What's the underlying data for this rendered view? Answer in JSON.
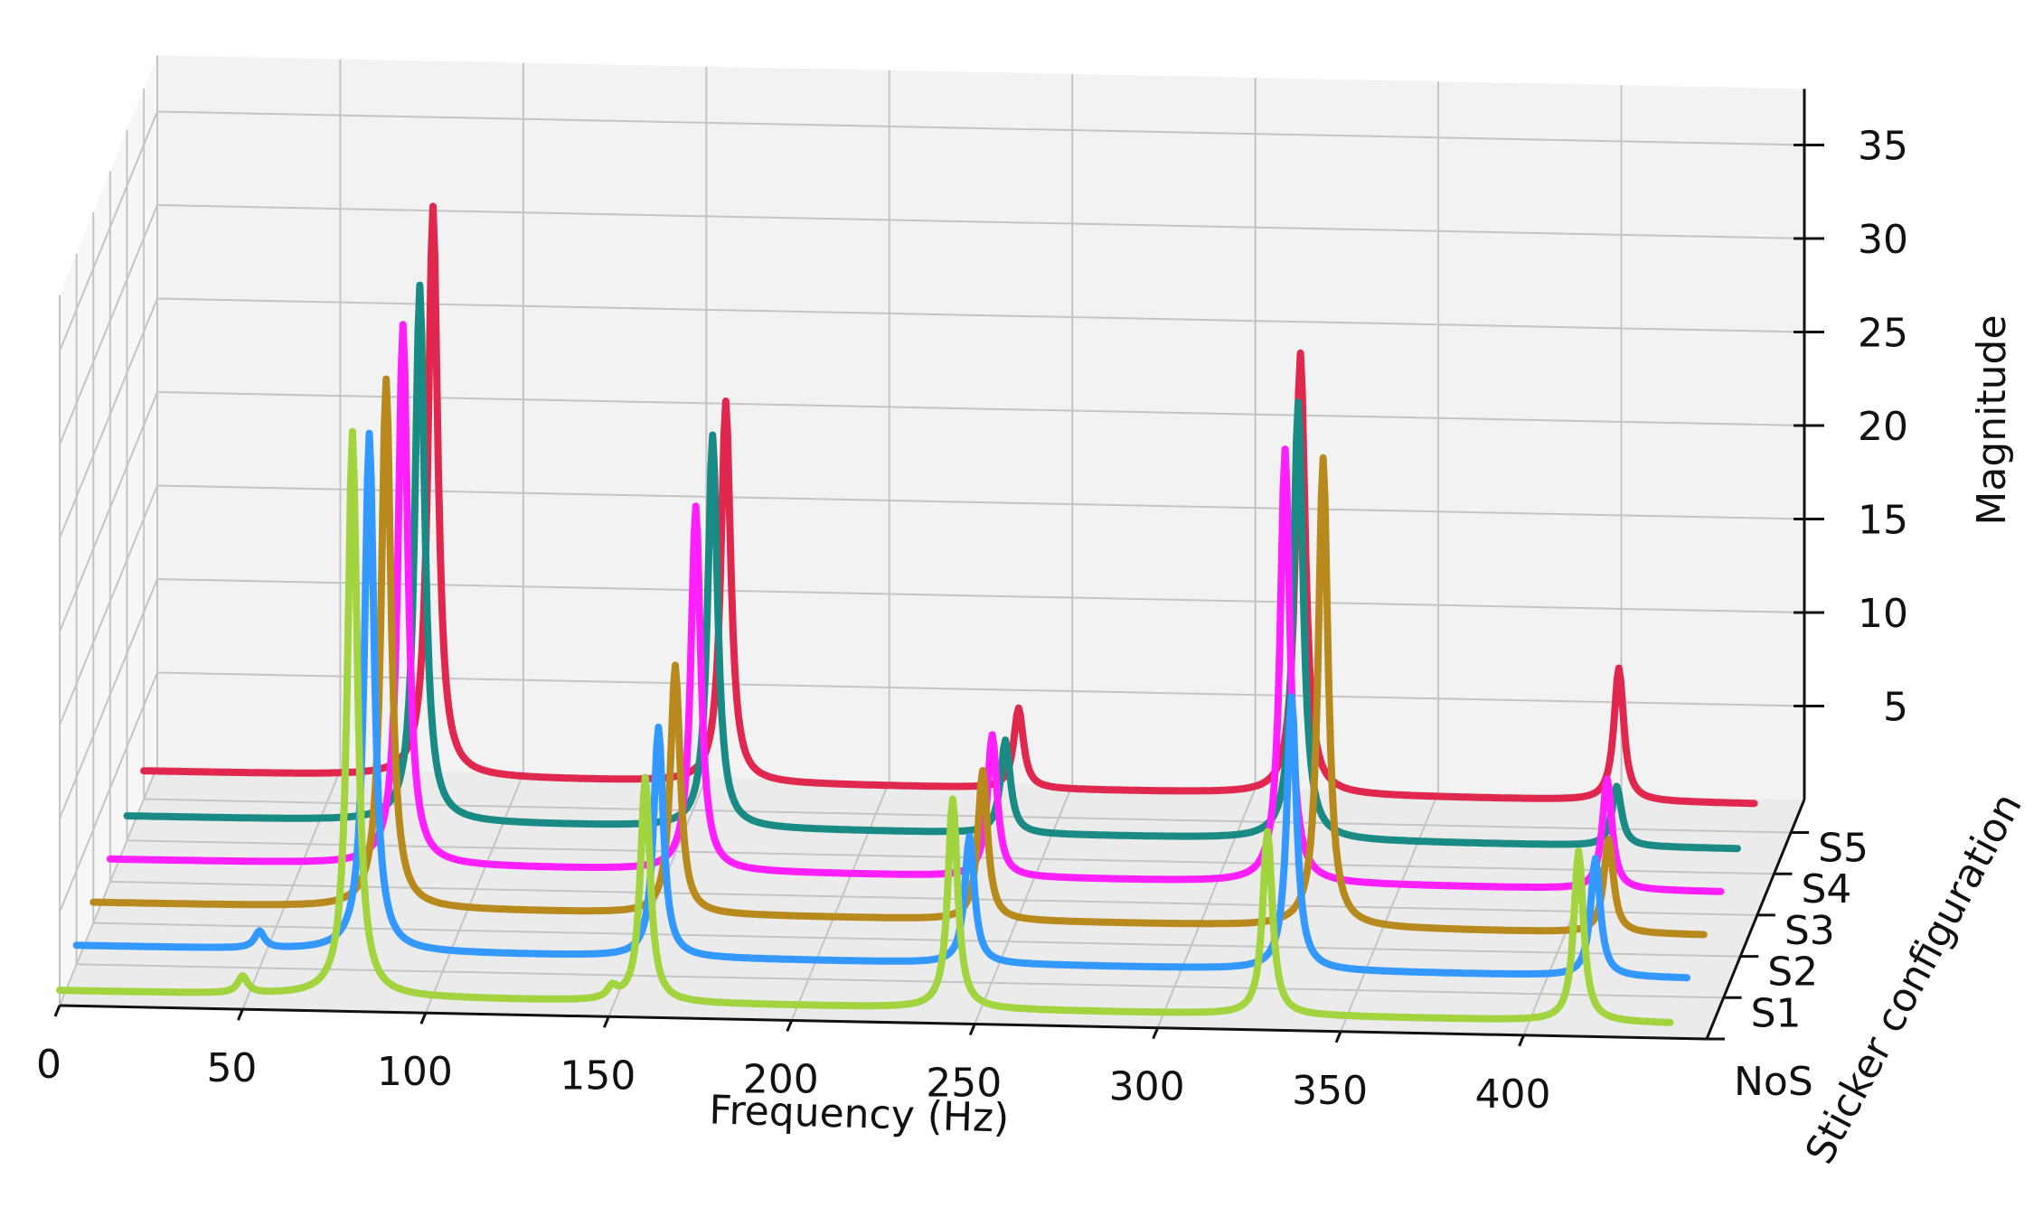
{
  "chart_data": {
    "type": "line",
    "projection": "3d-waterfall",
    "xlabel": "Frequency (Hz)",
    "ylabel": "Sticker configuration",
    "zlabel": "Magnitude",
    "xlim": [
      0,
      450
    ],
    "zlim": [
      0,
      38
    ],
    "x_ticks": [
      "0",
      "50",
      "100",
      "150",
      "200",
      "250",
      "300",
      "350",
      "400"
    ],
    "y_ticks": [
      "NoS",
      "S1",
      "S2",
      "S3",
      "S4",
      "S5"
    ],
    "z_ticks": [
      "5",
      "10",
      "15",
      "20",
      "25",
      "30",
      "35"
    ],
    "grid": true,
    "series": [
      {
        "color": "#a2d43f",
        "base": 0.8,
        "peaks": [
          [
            50,
            0.9
          ],
          [
            80,
            30.2
          ],
          [
            151,
            0.6
          ],
          [
            160,
            12.0
          ],
          [
            244,
            11.2
          ],
          [
            330,
            9.8
          ],
          [
            415,
            9.1
          ]
        ]
      },
      {
        "color": "#3398ff",
        "base": 1.0,
        "peaks": [
          [
            50,
            0.9
          ],
          [
            80,
            27.7
          ],
          [
            159,
            12.3
          ],
          [
            244,
            6.8
          ],
          [
            332,
            14.6
          ],
          [
            415,
            6.3
          ]
        ]
      },
      {
        "color": "#b88a1e",
        "base": 1.1,
        "peaks": [
          [
            80,
            28.3
          ],
          [
            159,
            13.3
          ],
          [
            243,
            8.0
          ],
          [
            336,
            25.1
          ],
          [
            414,
            5.0
          ]
        ]
      },
      {
        "color": "#ff1fff",
        "base": 1.2,
        "peaks": [
          [
            80,
            28.9
          ],
          [
            160,
            19.5
          ],
          [
            241,
            7.6
          ],
          [
            321,
            23.2
          ],
          [
            409,
            5.9
          ]
        ]
      },
      {
        "color": "#1a8a84",
        "base": 1.3,
        "peaks": [
          [
            80,
            28.7
          ],
          [
            160,
            21.0
          ],
          [
            240,
            5.0
          ],
          [
            320,
            23.4
          ],
          [
            407,
            3.2
          ]
        ]
      },
      {
        "color": "#e0284e",
        "base": 1.5,
        "peaks": [
          [
            79,
            30.5
          ],
          [
            159,
            20.4
          ],
          [
            239,
            4.3
          ],
          [
            316,
            23.6
          ],
          [
            403,
            7.1
          ]
        ]
      }
    ]
  }
}
